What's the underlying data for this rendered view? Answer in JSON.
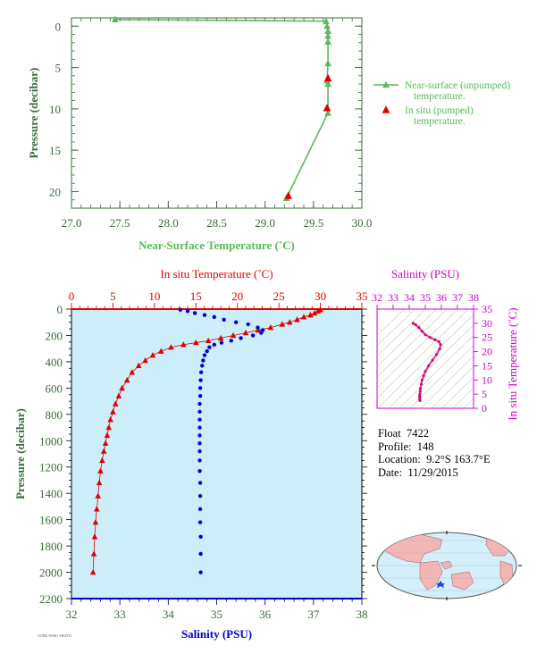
{
  "colors": {
    "green": "#5cb85c",
    "dark_text": "#3a6b3a",
    "red": "#e00000",
    "blue": "#0000cc",
    "magenta": "#cc00cc",
    "plot_bg": "#cdeef8",
    "map_land": "#f2b6b6",
    "map_ocean": "#d4eefa"
  },
  "info": {
    "float_label": "Float",
    "float": "7422",
    "profile_label": "Profile:",
    "profile": "148",
    "location_label": "Location:",
    "location": "9.2°S  163.7°E",
    "date_label": "Date:",
    "date": "11/29/2015"
  },
  "footer_note": "AOML/WMO 5904376",
  "chart_data": [
    {
      "type": "line",
      "name": "near-surface",
      "xlabel": "Near-Surface Temperature (˚C)",
      "ylabel": "Pressure (decibar)",
      "xlim": [
        27.0,
        30.0
      ],
      "ylim": [
        22,
        -1
      ],
      "xticks": [
        "27.0",
        "27.5",
        "28.0",
        "28.5",
        "29.0",
        "29.5",
        "30.0"
      ],
      "yticks": [
        "0",
        "5",
        "10",
        "15",
        "20"
      ],
      "legend_position": "right",
      "series": [
        {
          "name": "Near-surface (unpumped) temperature.",
          "x": [
            27.45,
            29.63,
            29.64,
            29.65,
            29.65,
            29.65,
            29.65,
            29.64,
            29.65,
            29.65,
            29.22
          ],
          "y": [
            -0.8,
            -0.6,
            0.0,
            0.6,
            1.2,
            1.9,
            4.5,
            6.6,
            7.0,
            10.5,
            20.8
          ]
        },
        {
          "name": "In situ (pumped) temperature.",
          "x": [
            29.65,
            29.64,
            29.24
          ],
          "y": [
            6.3,
            9.9,
            20.5
          ]
        }
      ]
    },
    {
      "type": "scatter",
      "name": "profile",
      "ylabel": "Pressure (decibar)",
      "ylim": [
        2200,
        0
      ],
      "yticks": [
        "0",
        "200",
        "400",
        "600",
        "800",
        "1000",
        "1200",
        "1400",
        "1600",
        "1800",
        "2000",
        "2200"
      ],
      "top_axis": {
        "label": "In situ Temperature (˚C)",
        "range": [
          0,
          35
        ],
        "ticks": [
          "0",
          "5",
          "10",
          "15",
          "20",
          "25",
          "30",
          "35"
        ]
      },
      "bottom_axis": {
        "label": "Salinity (PSU)",
        "range": [
          32,
          38
        ],
        "ticks": [
          "32",
          "33",
          "34",
          "35",
          "36",
          "37",
          "38"
        ]
      },
      "series": [
        {
          "name": "Temperature",
          "x": [
            30.0,
            29.7,
            29.3,
            28.8,
            28.0,
            27.2,
            26.3,
            25.4,
            24.0,
            22.5,
            21.0,
            19.5,
            18.0,
            16.5,
            15.0,
            13.5,
            12.0,
            10.8,
            9.8,
            8.9,
            8.1,
            7.3,
            6.7,
            6.1,
            5.7,
            5.3,
            5.0,
            4.7,
            4.5,
            4.3,
            4.1,
            3.9,
            3.7,
            3.5,
            3.35,
            3.2,
            3.05,
            2.9,
            2.8,
            2.7,
            2.6
          ],
          "y": [
            5,
            15,
            30,
            45,
            60,
            80,
            100,
            115,
            140,
            160,
            180,
            200,
            220,
            240,
            255,
            270,
            290,
            320,
            350,
            390,
            430,
            480,
            540,
            600,
            660,
            720,
            780,
            840,
            900,
            960,
            1020,
            1080,
            1150,
            1230,
            1320,
            1420,
            1520,
            1620,
            1730,
            1860,
            2000
          ]
        },
        {
          "name": "Salinity",
          "x": [
            34.25,
            34.4,
            34.55,
            34.75,
            34.95,
            35.15,
            35.4,
            35.65,
            35.85,
            35.95,
            35.92,
            35.75,
            35.5,
            35.3,
            35.1,
            34.95,
            34.85,
            34.8,
            34.75,
            34.72,
            34.7,
            34.68,
            34.67,
            34.66,
            34.66,
            34.65,
            34.65,
            34.65,
            34.65,
            34.65,
            34.65,
            34.65,
            34.65,
            34.65,
            34.66,
            34.66,
            34.66,
            34.66,
            34.67,
            34.67,
            34.67
          ],
          "y": [
            5,
            15,
            30,
            45,
            60,
            80,
            100,
            115,
            140,
            160,
            180,
            200,
            220,
            240,
            255,
            270,
            290,
            320,
            350,
            390,
            430,
            480,
            540,
            600,
            660,
            720,
            780,
            840,
            900,
            960,
            1020,
            1080,
            1150,
            1230,
            1320,
            1420,
            1520,
            1620,
            1730,
            1860,
            2000
          ]
        }
      ]
    },
    {
      "type": "scatter",
      "name": "ts-diagram",
      "xlabel": "Salinity (PSU)",
      "ylabel": "In situ Temperature (˚C)",
      "xlim": [
        32,
        38
      ],
      "ylim": [
        0,
        35
      ],
      "xticks": [
        "32",
        "33",
        "34",
        "35",
        "36",
        "37",
        "38"
      ],
      "yticks": [
        "0",
        "5",
        "10",
        "15",
        "20",
        "25",
        "30",
        "35"
      ],
      "series": [
        {
          "name": "T-S",
          "x": [
            34.25,
            34.4,
            34.6,
            34.8,
            35.0,
            35.3,
            35.6,
            35.85,
            35.95,
            35.9,
            35.7,
            35.45,
            35.2,
            35.0,
            34.9,
            34.8,
            34.75,
            34.7,
            34.68,
            34.66,
            34.65,
            34.65,
            34.66,
            34.67
          ],
          "y": [
            30.0,
            29.5,
            28.5,
            27.2,
            26.0,
            25.0,
            24.2,
            23.5,
            22.5,
            21.0,
            19.0,
            17.0,
            15.0,
            13.0,
            11.5,
            10.0,
            8.5,
            7.0,
            6.0,
            5.0,
            4.3,
            3.7,
            3.1,
            2.7
          ]
        }
      ]
    }
  ]
}
